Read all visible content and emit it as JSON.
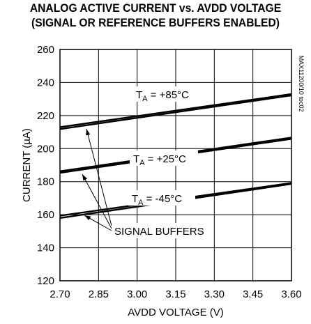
{
  "chart_data": {
    "type": "line",
    "title_line1": "ANALOG ACTIVE CURRENT vs. AVDD VOLTAGE",
    "title_line2": "(SIGNAL OR REFERENCE BUFFERS ENABLED)",
    "xlabel": "AVDD VOLTAGE (V)",
    "ylabel": "CURRENT (µA)",
    "xlim": [
      2.7,
      3.6
    ],
    "ylim": [
      120,
      260
    ],
    "xticks": [
      "2.70",
      "2.85",
      "3.00",
      "3.15",
      "3.30",
      "3.45",
      "3.60"
    ],
    "xtick_values": [
      2.7,
      2.85,
      3.0,
      3.15,
      3.3,
      3.45,
      3.6
    ],
    "yticks": [
      "260",
      "240",
      "220",
      "200",
      "180",
      "160",
      "140",
      "120"
    ],
    "ytick_values": [
      260,
      240,
      220,
      200,
      180,
      160,
      140,
      120
    ],
    "grid": true,
    "series": [
      {
        "name": "+85°C reference",
        "x": [
          2.7,
          3.6
        ],
        "y": [
          213.0,
          233.0
        ]
      },
      {
        "name": "+85°C signal",
        "x": [
          2.7,
          3.6
        ],
        "y": [
          211.8,
          232.2
        ]
      },
      {
        "name": "+25°C reference",
        "x": [
          2.7,
          3.6
        ],
        "y": [
          186.3,
          206.7
        ]
      },
      {
        "name": "+25°C signal",
        "x": [
          2.7,
          3.6
        ],
        "y": [
          185.3,
          205.9
        ]
      },
      {
        "name": "-45°C reference",
        "x": [
          2.7,
          3.6
        ],
        "y": [
          159.4,
          179.2
        ]
      },
      {
        "name": "-45°C signal",
        "x": [
          2.7,
          3.6
        ],
        "y": [
          158.0,
          178.6
        ]
      }
    ],
    "annotations": {
      "t85": {
        "prefix": "T",
        "sub": "A",
        "rest": " = +85°C"
      },
      "t25": {
        "prefix": "T",
        "sub": "A",
        "rest": " = +25°C"
      },
      "tm45": {
        "prefix": "T",
        "sub": "A",
        "rest": " = -45°C"
      },
      "signal_buffers": "SIGNAL BUFFERS",
      "side_code": "MAX11200/10 toc02"
    }
  }
}
